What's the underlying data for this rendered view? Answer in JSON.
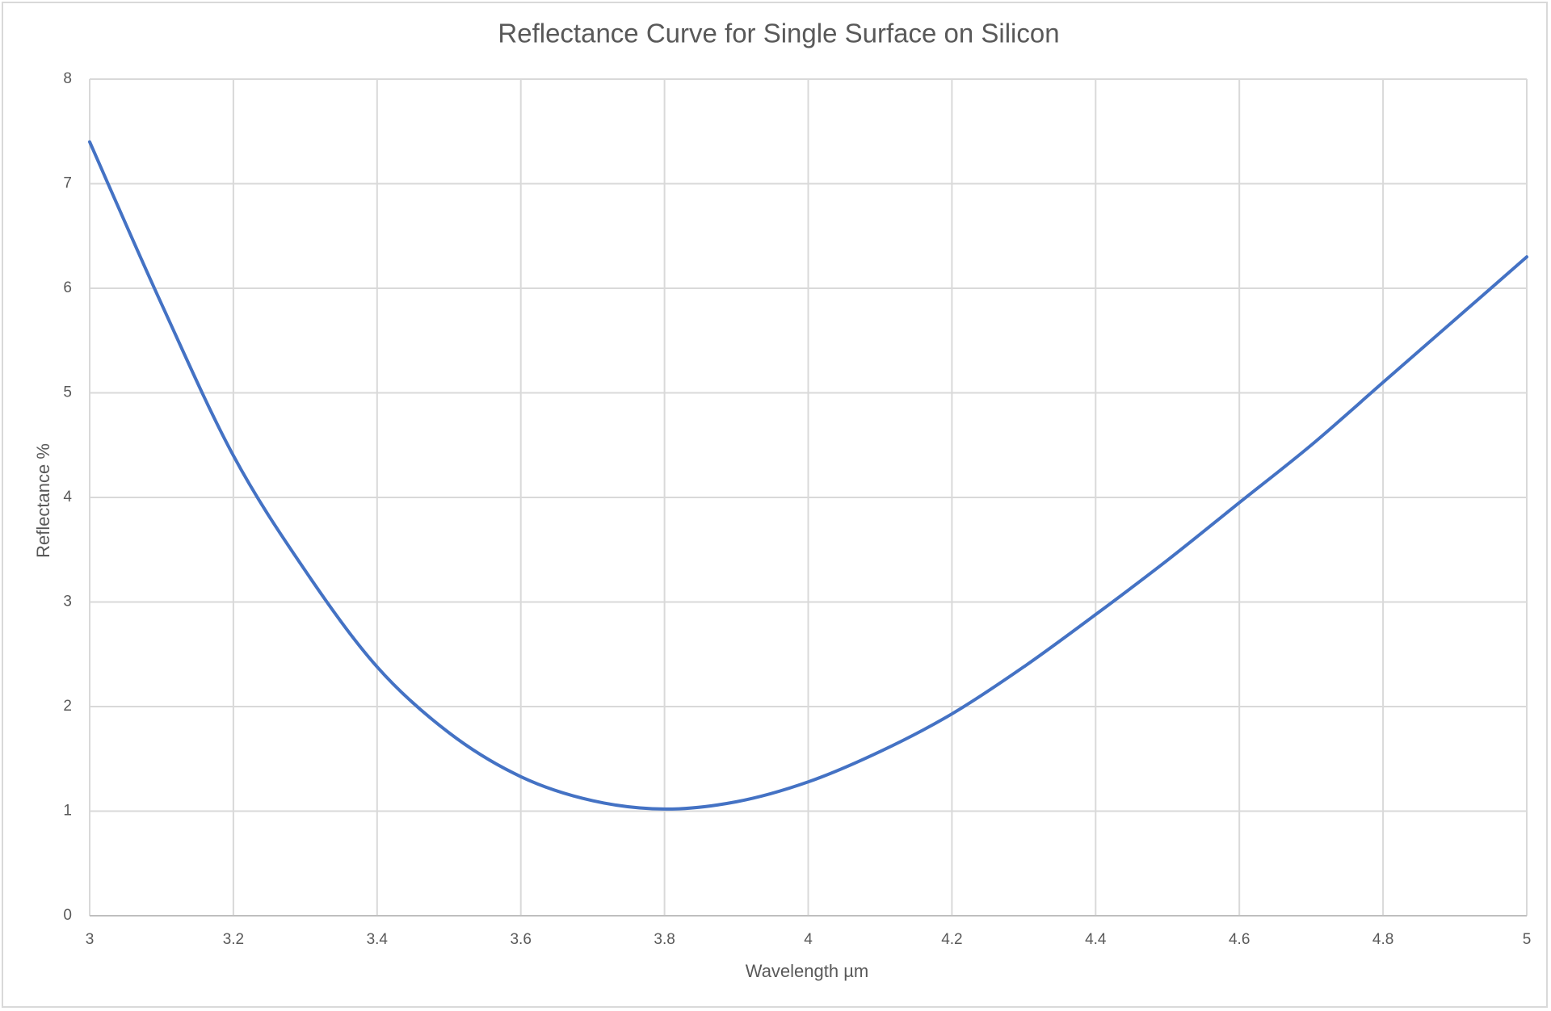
{
  "chart_data": {
    "type": "line",
    "title": "Reflectance Curve for Single Surface on Silicon",
    "xlabel": "Wavelength µm",
    "ylabel": "Reflectance %",
    "xlim": [
      3,
      5
    ],
    "ylim": [
      0,
      8
    ],
    "x_ticks": [
      "3",
      "3.2",
      "3.4",
      "3.6",
      "3.8",
      "4",
      "4.2",
      "4.4",
      "4.6",
      "4.8",
      "5"
    ],
    "y_ticks": [
      "0",
      "1",
      "2",
      "3",
      "4",
      "5",
      "6",
      "7",
      "8"
    ],
    "grid": true,
    "legend": "none",
    "series": [
      {
        "color": "#4472c4",
        "x": [
          3.0,
          3.1,
          3.2,
          3.3,
          3.4,
          3.5,
          3.6,
          3.7,
          3.8,
          3.9,
          4.0,
          4.1,
          4.2,
          4.3,
          4.4,
          4.5,
          4.6,
          4.7,
          4.8,
          4.9,
          5.0
        ],
        "y": [
          7.4,
          5.85,
          4.4,
          3.3,
          2.38,
          1.75,
          1.33,
          1.1,
          1.02,
          1.09,
          1.28,
          1.57,
          1.93,
          2.38,
          2.88,
          3.4,
          3.95,
          4.5,
          5.1,
          5.7,
          6.3
        ]
      }
    ]
  }
}
